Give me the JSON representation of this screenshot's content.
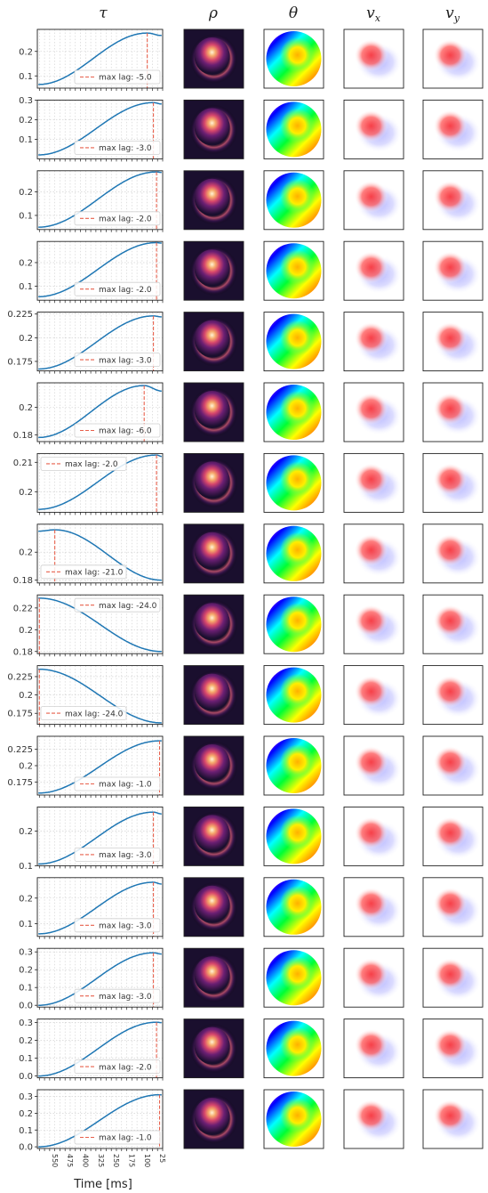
{
  "column_titles": [
    {
      "base": "τ",
      "sub": ""
    },
    {
      "base": "ρ",
      "sub": ""
    },
    {
      "base": "θ",
      "sub": ""
    },
    {
      "base": "v",
      "sub": "x"
    },
    {
      "base": "v",
      "sub": "y"
    }
  ],
  "xlabel": "Time [ms]",
  "legend_prefix": "max lag: ",
  "colors": {
    "curve": "#1f77b4",
    "maxlag_line": "#e8604c",
    "grid": "#cccccc",
    "rho_background": "#1a0f2e",
    "frame": "#222222"
  },
  "image_panels": {
    "rho": "magma colormap density image",
    "theta": "hsv colormap phase image",
    "vx": "bwr colormap velocity image",
    "vy": "bwr colormap velocity image"
  },
  "chart_data": {
    "type": "line",
    "x_ticks": [
      550,
      475,
      400,
      325,
      250,
      175,
      100,
      25
    ],
    "x_ticks_print_rotated": true,
    "xlim": [
      610,
      0
    ],
    "grid": true,
    "rows": [
      {
        "lag_label": "-5.0",
        "max_lag_ms": 75,
        "y_ticks": [
          0.1,
          0.2
        ],
        "ylim": [
          0.05,
          0.29
        ],
        "y_start": 0.065,
        "y_end": 0.265,
        "y_peak": 0.275,
        "legend_pos": "lower-right"
      },
      {
        "lag_label": "-3.0",
        "max_lag_ms": 45,
        "y_ticks": [
          0.1,
          0.2,
          0.3
        ],
        "ylim": [
          0.0,
          0.3
        ],
        "y_start": 0.02,
        "y_end": 0.28,
        "y_peak": 0.287,
        "legend_pos": "lower-right"
      },
      {
        "lag_label": "-2.0",
        "max_lag_ms": 30,
        "y_ticks": [
          0.1,
          0.2
        ],
        "ylim": [
          0.04,
          0.29
        ],
        "y_start": 0.05,
        "y_end": 0.283,
        "y_peak": 0.285,
        "legend_pos": "lower-right"
      },
      {
        "lag_label": "-2.0",
        "max_lag_ms": 30,
        "y_ticks": [
          0.1,
          0.2
        ],
        "ylim": [
          0.04,
          0.29
        ],
        "y_start": 0.055,
        "y_end": 0.283,
        "y_peak": 0.285,
        "legend_pos": "lower-right"
      },
      {
        "lag_label": "-3.0",
        "max_lag_ms": 45,
        "y_ticks": [
          0.175,
          0.2,
          0.225
        ],
        "ylim": [
          0.165,
          0.227
        ],
        "y_start": 0.167,
        "y_end": 0.222,
        "y_peak": 0.223,
        "legend_pos": "lower-right"
      },
      {
        "lag_label": "-6.0",
        "max_lag_ms": 90,
        "y_ticks": [
          0.18,
          0.2
        ],
        "ylim": [
          0.175,
          0.218
        ],
        "y_start": 0.178,
        "y_end": 0.212,
        "y_peak": 0.216,
        "legend_pos": "lower-right"
      },
      {
        "lag_label": "-2.0",
        "max_lag_ms": 30,
        "y_ticks": [
          0.2,
          0.21
        ],
        "ylim": [
          0.193,
          0.213
        ],
        "y_start": 0.194,
        "y_end": 0.212,
        "y_peak": 0.2125,
        "legend_pos": "upper-left"
      },
      {
        "lag_label": "-21.0",
        "max_lag_ms": 525,
        "y_ticks": [
          0.18,
          0.2
        ],
        "ylim": [
          0.178,
          0.22
        ],
        "y_start": 0.215,
        "y_end": 0.18,
        "y_peak": 0.216,
        "legend_pos": "lower-left"
      },
      {
        "lag_label": "-24.0",
        "max_lag_ms": 600,
        "y_ticks": [
          0.18,
          0.2,
          0.22
        ],
        "ylim": [
          0.178,
          0.232
        ],
        "y_start": 0.229,
        "y_end": 0.18,
        "y_peak": 0.229,
        "legend_pos": "upper-right"
      },
      {
        "lag_label": "-24.0",
        "max_lag_ms": 600,
        "y_ticks": [
          0.175,
          0.2,
          0.225
        ],
        "ylim": [
          0.16,
          0.24
        ],
        "y_start": 0.235,
        "y_end": 0.162,
        "y_peak": 0.235,
        "legend_pos": "lower-left"
      },
      {
        "lag_label": "-1.0",
        "max_lag_ms": 15,
        "y_ticks": [
          0.175,
          0.2,
          0.225
        ],
        "ylim": [
          0.155,
          0.245
        ],
        "y_start": 0.158,
        "y_end": 0.238,
        "y_peak": 0.238,
        "legend_pos": "lower-right"
      },
      {
        "lag_label": "-3.0",
        "max_lag_ms": 45,
        "y_ticks": [
          0.1,
          0.2
        ],
        "ylim": [
          0.1,
          0.27
        ],
        "y_start": 0.105,
        "y_end": 0.25,
        "y_peak": 0.255,
        "legend_pos": "lower-right"
      },
      {
        "lag_label": "-3.0",
        "max_lag_ms": 45,
        "y_ticks": [
          0.1,
          0.2
        ],
        "ylim": [
          0.05,
          0.28
        ],
        "y_start": 0.06,
        "y_end": 0.255,
        "y_peak": 0.262,
        "legend_pos": "lower-right"
      },
      {
        "lag_label": "-3.0",
        "max_lag_ms": 45,
        "y_ticks": [
          0.0,
          0.1,
          0.2,
          0.3
        ],
        "ylim": [
          -0.01,
          0.32
        ],
        "y_start": 0.0,
        "y_end": 0.288,
        "y_peak": 0.295,
        "legend_pos": "lower-right"
      },
      {
        "lag_label": "-2.0",
        "max_lag_ms": 30,
        "y_ticks": [
          0.0,
          0.1,
          0.2,
          0.3
        ],
        "ylim": [
          -0.01,
          0.32
        ],
        "y_start": 0.0,
        "y_end": 0.3,
        "y_peak": 0.302,
        "legend_pos": "lower-right"
      },
      {
        "lag_label": "-1.0",
        "max_lag_ms": 15,
        "y_ticks": [
          0.0,
          0.1,
          0.2,
          0.3
        ],
        "ylim": [
          -0.01,
          0.34
        ],
        "y_start": 0.0,
        "y_end": 0.31,
        "y_peak": 0.31,
        "legend_pos": "lower-right"
      }
    ]
  }
}
